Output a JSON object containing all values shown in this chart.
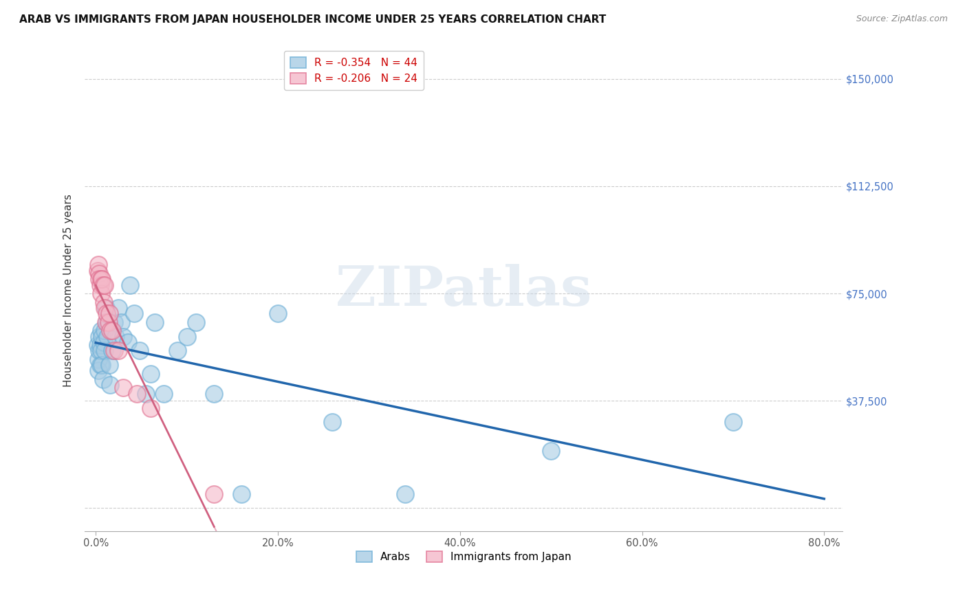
{
  "title": "ARAB VS IMMIGRANTS FROM JAPAN HOUSEHOLDER INCOME UNDER 25 YEARS CORRELATION CHART",
  "source": "Source: ZipAtlas.com",
  "ylabel": "Householder Income Under 25 years",
  "ytick_vals": [
    0,
    37500,
    75000,
    112500,
    150000
  ],
  "ytick_labels": [
    "",
    "$37,500",
    "$75,000",
    "$112,500",
    "$150,000"
  ],
  "xtick_vals": [
    0.0,
    0.2,
    0.4,
    0.6,
    0.8
  ],
  "xtick_labels": [
    "0.0%",
    "20.0%",
    "40.0%",
    "60.0%",
    "80.0%"
  ],
  "xlim": [
    -0.012,
    0.82
  ],
  "ylim": [
    -8000,
    160000
  ],
  "legend_arab_R": "-0.354",
  "legend_arab_N": "44",
  "legend_japan_R": "-0.206",
  "legend_japan_N": "24",
  "arab_dot_color": "#a8cce4",
  "arab_edge_color": "#6baed6",
  "japan_dot_color": "#f4b8c8",
  "japan_edge_color": "#e07090",
  "arab_line_color": "#2166ac",
  "japan_line_color": "#d06080",
  "watermark_text": "ZIPatlas",
  "arab_x": [
    0.002,
    0.003,
    0.003,
    0.004,
    0.004,
    0.005,
    0.005,
    0.006,
    0.006,
    0.007,
    0.007,
    0.008,
    0.009,
    0.01,
    0.01,
    0.011,
    0.012,
    0.013,
    0.015,
    0.016,
    0.018,
    0.02,
    0.022,
    0.025,
    0.028,
    0.03,
    0.035,
    0.038,
    0.042,
    0.048,
    0.055,
    0.06,
    0.065,
    0.075,
    0.09,
    0.1,
    0.11,
    0.13,
    0.16,
    0.2,
    0.26,
    0.34,
    0.5,
    0.7
  ],
  "arab_y": [
    57000,
    52000,
    48000,
    60000,
    55000,
    57000,
    50000,
    55000,
    62000,
    60000,
    50000,
    45000,
    58000,
    62000,
    55000,
    70000,
    65000,
    60000,
    50000,
    43000,
    55000,
    65000,
    60000,
    70000,
    65000,
    60000,
    58000,
    78000,
    68000,
    55000,
    40000,
    47000,
    65000,
    40000,
    55000,
    60000,
    65000,
    40000,
    5000,
    68000,
    30000,
    5000,
    20000,
    30000
  ],
  "japan_x": [
    0.002,
    0.003,
    0.004,
    0.004,
    0.005,
    0.006,
    0.006,
    0.007,
    0.008,
    0.009,
    0.01,
    0.01,
    0.011,
    0.012,
    0.014,
    0.015,
    0.016,
    0.018,
    0.02,
    0.025,
    0.03,
    0.045,
    0.06,
    0.13
  ],
  "japan_y": [
    83000,
    85000,
    82000,
    80000,
    78000,
    80000,
    75000,
    80000,
    78000,
    72000,
    78000,
    70000,
    65000,
    68000,
    65000,
    68000,
    62000,
    62000,
    55000,
    55000,
    42000,
    40000,
    35000,
    5000
  ]
}
